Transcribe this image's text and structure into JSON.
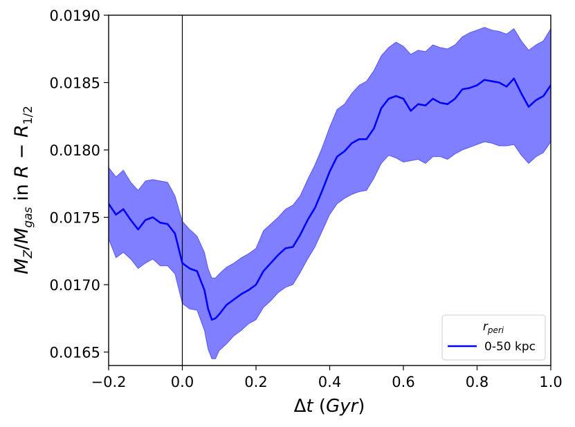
{
  "chart_data": {
    "type": "line",
    "title": "",
    "xlabel": "Δt (Gyr)",
    "ylabel": "M_Z/M_gas in R − R_1/2",
    "xlim": [
      -0.2,
      1.0
    ],
    "ylim": [
      0.0164,
      0.019
    ],
    "grid": false,
    "legend": {
      "title": "r_peri",
      "placement": "bottom-right"
    },
    "x_ticks": [
      "−0.2",
      "0.0",
      "0.2",
      "0.4",
      "0.6",
      "0.8",
      "1.0"
    ],
    "y_ticks": [
      "0.0165",
      "0.0170",
      "0.0175",
      "0.0180",
      "0.0185",
      "0.0190"
    ],
    "vertical_line_x": 0.0,
    "series": [
      {
        "name": "0-50 kpc",
        "color": "#0000ff",
        "fill_color": "#0000ff",
        "x": [
          -0.2,
          -0.18,
          -0.16,
          -0.14,
          -0.12,
          -0.1,
          -0.08,
          -0.06,
          -0.04,
          -0.02,
          0.0,
          0.02,
          0.04,
          0.06,
          0.07,
          0.08,
          0.09,
          0.1,
          0.12,
          0.14,
          0.16,
          0.18,
          0.2,
          0.22,
          0.24,
          0.26,
          0.28,
          0.3,
          0.32,
          0.34,
          0.36,
          0.38,
          0.4,
          0.42,
          0.44,
          0.46,
          0.48,
          0.5,
          0.52,
          0.54,
          0.56,
          0.58,
          0.6,
          0.62,
          0.64,
          0.66,
          0.68,
          0.7,
          0.72,
          0.74,
          0.76,
          0.78,
          0.8,
          0.82,
          0.84,
          0.86,
          0.88,
          0.9,
          0.92,
          0.94,
          0.96,
          0.98,
          1.0
        ],
        "y": [
          0.0176,
          0.01752,
          0.01756,
          0.01748,
          0.01741,
          0.01748,
          0.0175,
          0.01746,
          0.01745,
          0.01738,
          0.01716,
          0.01712,
          0.0171,
          0.01696,
          0.01682,
          0.01674,
          0.01675,
          0.01678,
          0.01685,
          0.01689,
          0.01693,
          0.01696,
          0.017,
          0.0171,
          0.01716,
          0.01722,
          0.01727,
          0.01728,
          0.01737,
          0.01748,
          0.01757,
          0.0177,
          0.01784,
          0.01795,
          0.01799,
          0.01805,
          0.01808,
          0.01808,
          0.01816,
          0.01831,
          0.01838,
          0.0184,
          0.01838,
          0.01829,
          0.01834,
          0.01833,
          0.01838,
          0.01835,
          0.01834,
          0.01838,
          0.01845,
          0.01846,
          0.01848,
          0.01852,
          0.01851,
          0.0185,
          0.01847,
          0.01853,
          0.01842,
          0.01832,
          0.01837,
          0.0184,
          0.01848
        ],
        "lower": [
          0.01734,
          0.0172,
          0.01724,
          0.01719,
          0.01712,
          0.01716,
          0.01719,
          0.01714,
          0.01714,
          0.01708,
          0.01686,
          0.01682,
          0.01681,
          0.01666,
          0.01652,
          0.01645,
          0.01645,
          0.01651,
          0.01656,
          0.01662,
          0.01666,
          0.01671,
          0.01674,
          0.01683,
          0.01688,
          0.01694,
          0.01698,
          0.017,
          0.01709,
          0.01719,
          0.01728,
          0.0174,
          0.01752,
          0.0176,
          0.01764,
          0.01767,
          0.01769,
          0.0177,
          0.01779,
          0.0179,
          0.01796,
          0.01794,
          0.01791,
          0.01792,
          0.01793,
          0.0179,
          0.01795,
          0.01795,
          0.01793,
          0.01797,
          0.018,
          0.01802,
          0.01804,
          0.01806,
          0.01805,
          0.01803,
          0.01803,
          0.01804,
          0.01796,
          0.0179,
          0.01795,
          0.01798,
          0.01806
        ],
        "upper": [
          0.01787,
          0.0178,
          0.01785,
          0.01776,
          0.0177,
          0.01777,
          0.01778,
          0.01777,
          0.01776,
          0.01766,
          0.01747,
          0.01741,
          0.01736,
          0.01724,
          0.01712,
          0.01705,
          0.01705,
          0.01708,
          0.01713,
          0.01716,
          0.0172,
          0.01723,
          0.01727,
          0.0174,
          0.01745,
          0.0175,
          0.01756,
          0.01759,
          0.01766,
          0.01778,
          0.01789,
          0.01802,
          0.01817,
          0.0183,
          0.01834,
          0.01842,
          0.01848,
          0.01851,
          0.01859,
          0.0187,
          0.01876,
          0.0188,
          0.01877,
          0.01871,
          0.01874,
          0.01873,
          0.01878,
          0.01876,
          0.01875,
          0.01878,
          0.01884,
          0.01887,
          0.01889,
          0.01891,
          0.01889,
          0.01888,
          0.01886,
          0.0189,
          0.01881,
          0.01874,
          0.01878,
          0.01881,
          0.0189
        ]
      }
    ]
  }
}
